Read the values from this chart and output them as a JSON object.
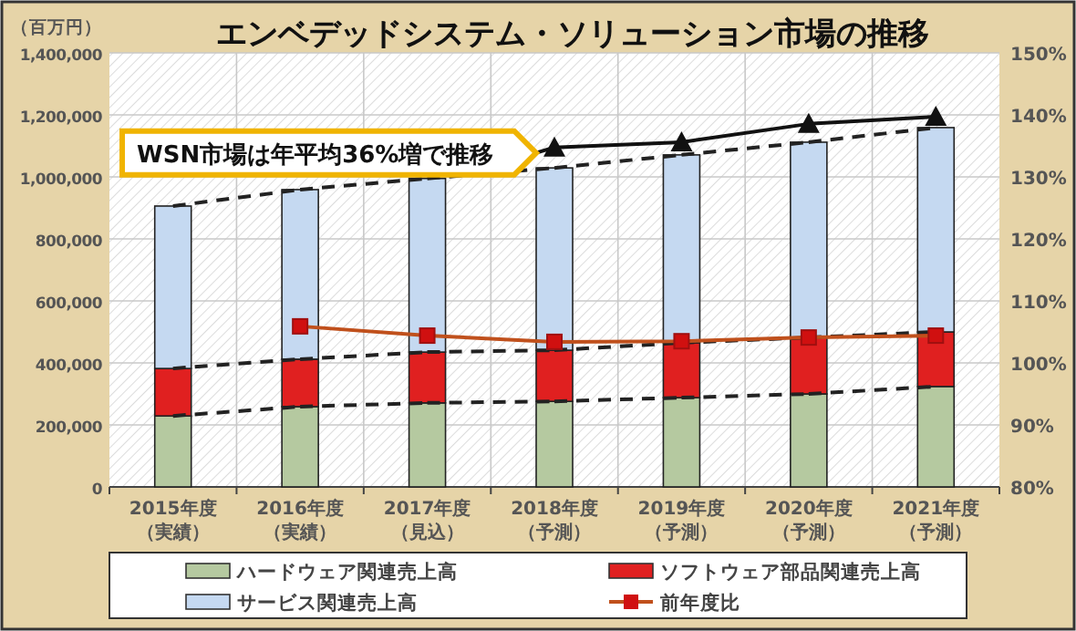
{
  "chart_data": {
    "type": "bar",
    "stacked": true,
    "title": "エンベデッドシステム・ソリューション市場の推移",
    "ylabel": "（百万円）",
    "categories": [
      "2015年度（実績）",
      "2016年度（実績）",
      "2017年度（見込）",
      "2018年度（予測）",
      "2019年度（予測）",
      "2020年度（予測）",
      "2021年度（予測）"
    ],
    "series": [
      {
        "name": "ハードウェア関連売上高",
        "color": "#b5c9a0",
        "values": [
          229000,
          259000,
          271000,
          276000,
          288000,
          300000,
          324000
        ]
      },
      {
        "name": "ソフトウェア部品関連売上高",
        "color": "#e02020",
        "values": [
          153000,
          153000,
          164000,
          165000,
          177000,
          182000,
          176000
        ]
      },
      {
        "name": "サービス関連売上高",
        "color": "#c5d9f1",
        "values": [
          524000,
          547000,
          560000,
          588000,
          606000,
          630000,
          659000
        ]
      },
      {
        "name": "前年度比",
        "type": "line",
        "axis": "y2",
        "color": "#c0501c",
        "marker": "square",
        "values": [
          null,
          105.9,
          104.4,
          103.4,
          103.5,
          104.1,
          104.4
        ]
      },
      {
        "type": "line",
        "color": "#111111",
        "marker": "triangle",
        "values": [
          null,
          null,
          null,
          1095000,
          1112000,
          1171000,
          1194000
        ]
      },
      {
        "type": "line",
        "line_style": "dashed",
        "color": "#222222",
        "values": [
          229000,
          259000,
          271000,
          276000,
          288000,
          300000,
          324000
        ]
      },
      {
        "type": "line",
        "line_style": "dashed",
        "color": "#222222",
        "values": [
          382000,
          412000,
          435000,
          441000,
          465000,
          482000,
          500000
        ]
      },
      {
        "type": "line",
        "line_style": "dashed",
        "color": "#222222",
        "values": [
          906000,
          959000,
          995000,
          1029000,
          1071000,
          1112000,
          1159000
        ]
      }
    ],
    "ylim": [
      0,
      1400000
    ],
    "yticks": [
      {
        "value": 0,
        "label": "0"
      },
      {
        "value": 200000,
        "label": "200,000"
      },
      {
        "value": 400000,
        "label": "400,000"
      },
      {
        "value": 600000,
        "label": "600,000"
      },
      {
        "value": 800000,
        "label": "800,000"
      },
      {
        "value": 1000000,
        "label": "1,000,000"
      },
      {
        "value": 1200000,
        "label": "1,200,000"
      },
      {
        "value": 1400000,
        "label": "1,400,000"
      }
    ],
    "y2lim": [
      80,
      150
    ],
    "y2ticks": [
      {
        "value": 80,
        "label": "80%"
      },
      {
        "value": 90,
        "label": "90%"
      },
      {
        "value": 100,
        "label": "100%"
      },
      {
        "value": 110,
        "label": "110%"
      },
      {
        "value": 120,
        "label": "120%"
      },
      {
        "value": 130,
        "label": "130%"
      },
      {
        "value": 140,
        "label": "140%"
      },
      {
        "value": 150,
        "label": "150%"
      }
    ],
    "grid": true,
    "legend": "bottom",
    "annotations": [
      {
        "text": "WSN市場は年平均36%増で推移",
        "x": "2018年度（予測）",
        "y": 1095000
      }
    ]
  }
}
